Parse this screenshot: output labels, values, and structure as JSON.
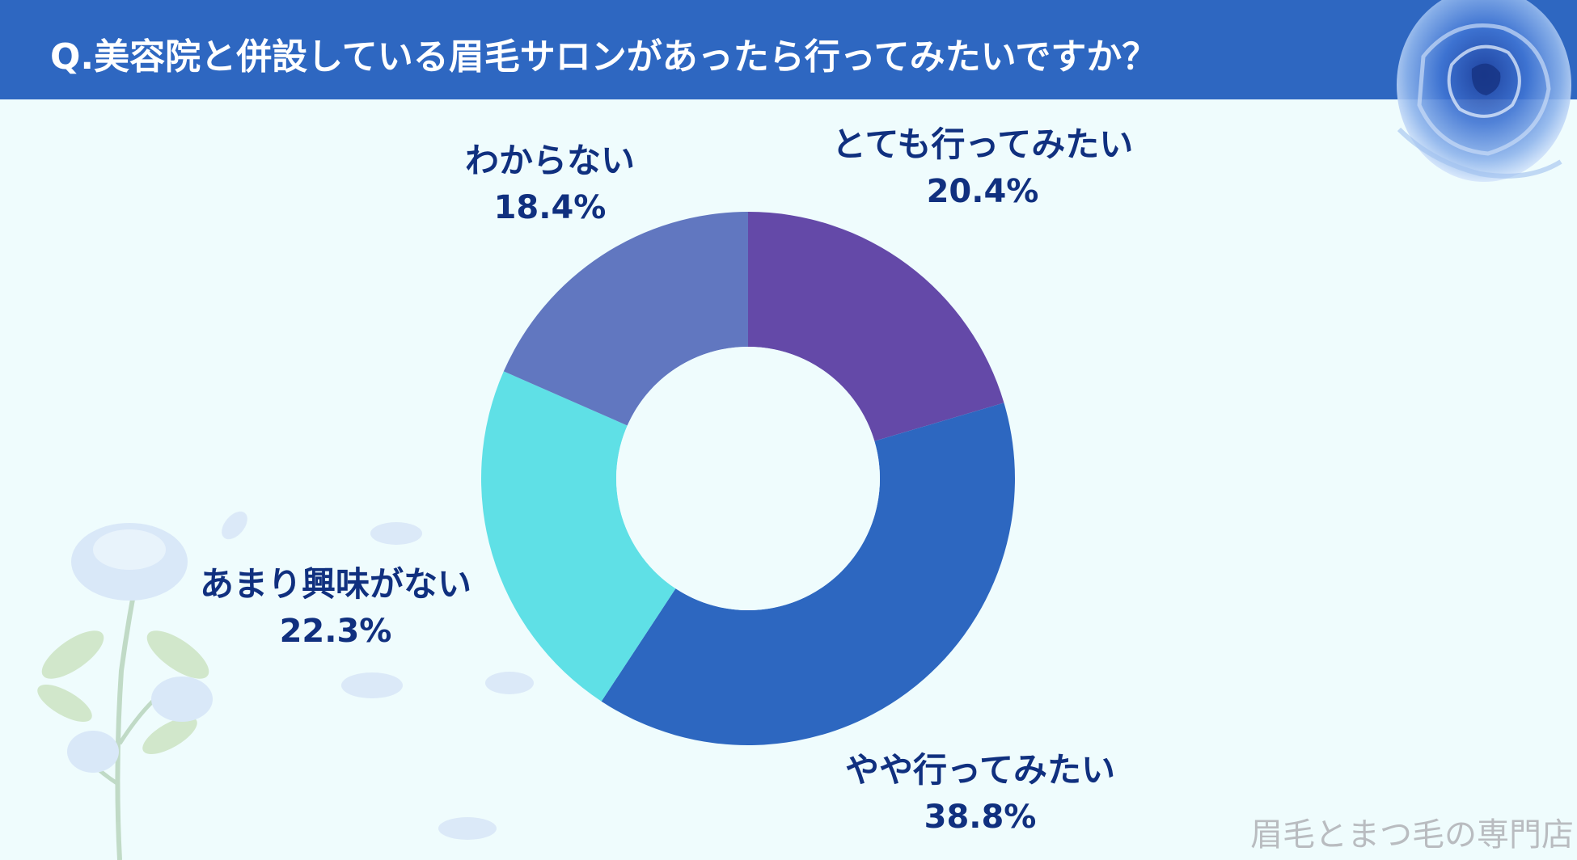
{
  "header": {
    "title": "Q.美容院と併設している眉毛サロンがあったら行ってみたいですか？",
    "bg_color": "#2e67c1"
  },
  "chart_data": {
    "type": "pie",
    "variant": "donut",
    "start": "top",
    "direction": "clockwise",
    "slices": [
      {
        "label": "とても行ってみたい",
        "value": 20.4,
        "value_text": "20.4%",
        "color": "#6449a8"
      },
      {
        "label": "やや行ってみたい",
        "value": 38.8,
        "value_text": "38.8%",
        "color": "#2d67c0"
      },
      {
        "label": "あまり興味がない",
        "value": 22.3,
        "value_text": "22.3%",
        "color": "#5fe0e6"
      },
      {
        "label": "わからない",
        "value": 18.4,
        "value_text": "18.4%",
        "color": "#6177c0"
      }
    ],
    "legend": "none",
    "labels": "outside"
  },
  "watermark": {
    "text": "眉毛とまつ毛の専門店"
  },
  "decorations": [
    "blue-rose-icon",
    "rose-stem-icon",
    "petal-icon"
  ]
}
